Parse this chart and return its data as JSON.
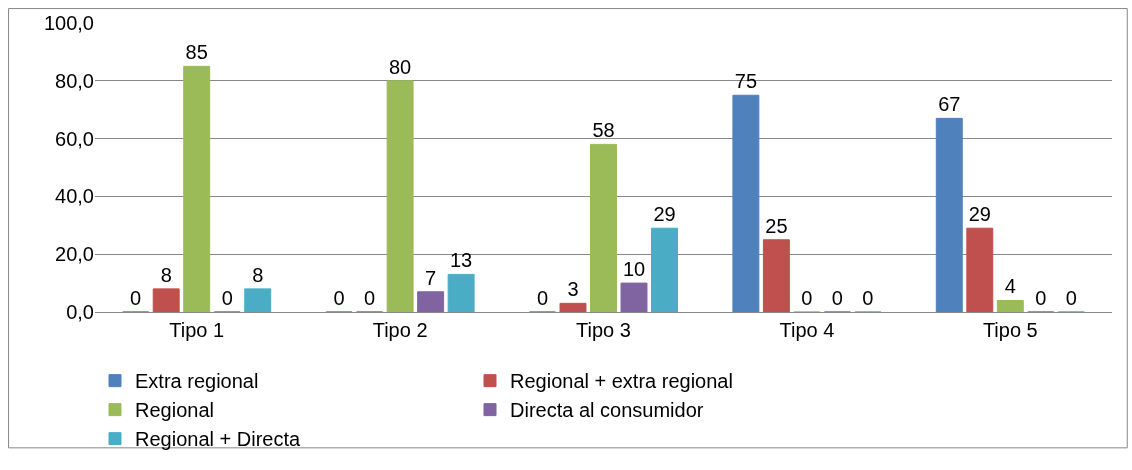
{
  "chart_data": {
    "type": "bar",
    "categories": [
      "Tipo 1",
      "Tipo 2",
      "Tipo 3",
      "Tipo 4",
      "Tipo 5"
    ],
    "series": [
      {
        "name": "Extra regional",
        "color": "#4f81bd",
        "values": [
          0,
          0,
          0,
          75,
          67
        ]
      },
      {
        "name": "Regional + extra regional",
        "color": "#c0504d",
        "values": [
          8,
          0,
          3,
          25,
          29
        ]
      },
      {
        "name": "Regional",
        "color": "#9bbb59",
        "values": [
          85,
          80,
          58,
          0,
          4
        ]
      },
      {
        "name": "Directa al consumidor",
        "color": "#8064a2",
        "values": [
          0,
          7,
          10,
          0,
          0
        ]
      },
      {
        "name": "Regional + Directa",
        "color": "#4bacc6",
        "values": [
          8,
          13,
          29,
          0,
          0
        ]
      }
    ],
    "ylim": [
      0,
      100
    ],
    "yticks": [
      {
        "value": 0,
        "label": "0,0"
      },
      {
        "value": 20,
        "label": "20,0"
      },
      {
        "value": 40,
        "label": "40,0"
      },
      {
        "value": 60,
        "label": "60,0"
      },
      {
        "value": 80,
        "label": "80,0"
      },
      {
        "value": 100,
        "label": "100,0"
      }
    ],
    "grid": "y",
    "legend": "bottom",
    "data_labels": true
  }
}
